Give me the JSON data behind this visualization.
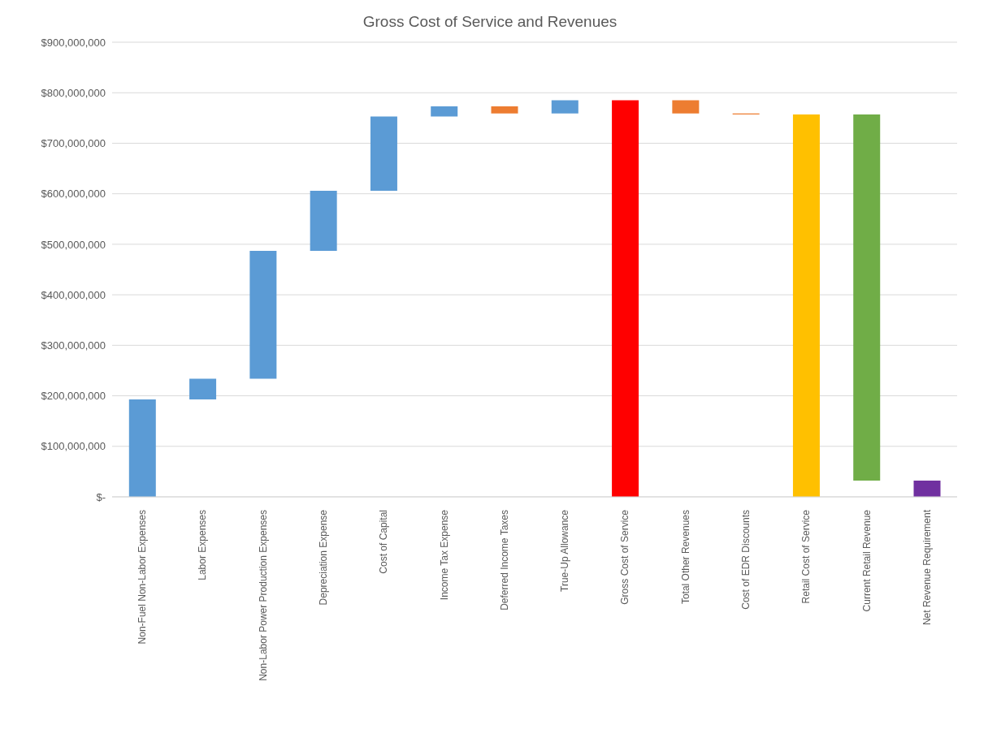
{
  "chart_data": {
    "type": "bar",
    "title": "Gross Cost of Service and Revenues",
    "categories": [
      "Non-Fuel  Non-Labor Expenses",
      "Labor Expenses",
      "Non-Labor Power Production Expenses",
      "Depreciation Expense",
      "Cost of Capital",
      "Income Tax Expense",
      "Deferred Income Taxes",
      "True-Up Allowance",
      "Gross Cost of Service",
      "Total Other Revenues",
      "Cost of EDR Discounts",
      "Retail Cost of Service",
      "Current Retail Revenue",
      "Net Revenue Requirement"
    ],
    "values": [
      193000000,
      41000000,
      253000000,
      119000000,
      147000000,
      20000000,
      -14000000,
      26000000,
      785000000,
      -26000000,
      -2000000,
      757000000,
      -725000000,
      32000000
    ],
    "base": [
      0,
      193000000,
      234000000,
      487000000,
      606000000,
      753000000,
      773000000,
      759000000,
      0,
      785000000,
      759000000,
      0,
      757000000,
      0
    ],
    "colors": [
      "#5b9bd5",
      "#5b9bd5",
      "#5b9bd5",
      "#5b9bd5",
      "#5b9bd5",
      "#5b9bd5",
      "#ed7d31",
      "#5b9bd5",
      "#ff0000",
      "#ed7d31",
      "#ed7d31",
      "#ffc000",
      "#70ad47",
      "#7030a0"
    ],
    "ylim": [
      0,
      900000000
    ],
    "yticks": [
      {
        "value": 0,
        "label": "$-"
      },
      {
        "value": 100000000,
        "label": "$100,000,000"
      },
      {
        "value": 200000000,
        "label": "$200,000,000"
      },
      {
        "value": 300000000,
        "label": "$300,000,000"
      },
      {
        "value": 400000000,
        "label": "$400,000,000"
      },
      {
        "value": 500000000,
        "label": "$500,000,000"
      },
      {
        "value": 600000000,
        "label": "$600,000,000"
      },
      {
        "value": 700000000,
        "label": "$700,000,000"
      },
      {
        "value": 800000000,
        "label": "$800,000,000"
      },
      {
        "value": 900000000,
        "label": "$900,000,000"
      }
    ],
    "grid": "y"
  }
}
